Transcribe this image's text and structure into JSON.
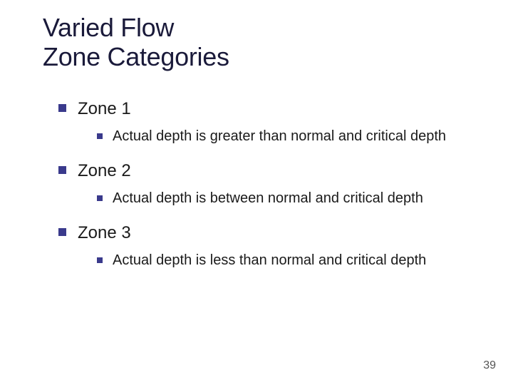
{
  "title_line1": "Varied Flow",
  "title_line2": "Zone Categories",
  "colors": {
    "bullet_lvl1": "#3a3a8c",
    "bullet_lvl2": "#3a3a8c",
    "title_color": "#1a1a3a",
    "text_color": "#1a1a1a",
    "background": "#ffffff"
  },
  "items": [
    {
      "label": "Zone 1",
      "sub": "Actual depth is greater than normal and critical depth"
    },
    {
      "label": "Zone 2",
      "sub": "Actual depth is between normal and critical depth"
    },
    {
      "label": "Zone 3",
      "sub": "Actual depth is less than normal and critical depth"
    }
  ],
  "page_number": "39",
  "typography": {
    "title_fontsize": 36,
    "lvl1_fontsize": 24,
    "lvl2_fontsize": 20,
    "pagenum_fontsize": 16,
    "font_family": "Verdana"
  }
}
